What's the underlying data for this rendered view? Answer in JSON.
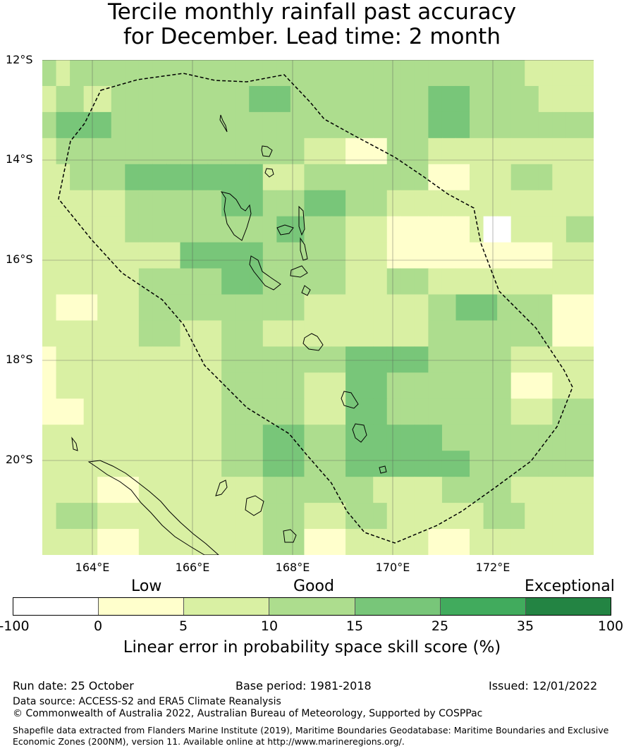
{
  "title": {
    "line1": "Tercile monthly rainfall past accuracy",
    "line2": "for December. Lead time: 2 month"
  },
  "map": {
    "lat_labels": [
      "12°S",
      "14°S",
      "16°S",
      "18°S",
      "20°S"
    ],
    "lon_labels": [
      "164°E",
      "166°E",
      "168°E",
      "170°E",
      "172°E"
    ],
    "colors": [
      "#ffffff",
      "#ffffcc",
      "#d9f0a3",
      "#addd8e",
      "#78c679",
      "#41ab5d",
      "#238443"
    ],
    "grid": [
      [
        3,
        2,
        3,
        3,
        3,
        3,
        3,
        3,
        3,
        3,
        3,
        3,
        3,
        3,
        3,
        3,
        3,
        3,
        3,
        3,
        3,
        3,
        3,
        3,
        3,
        3,
        3,
        3,
        3,
        3,
        3,
        3,
        3,
        3,
        3,
        2,
        2,
        2,
        2,
        2
      ],
      [
        2,
        3,
        3,
        2,
        2,
        3,
        3,
        3,
        3,
        3,
        3,
        3,
        3,
        3,
        3,
        4,
        4,
        4,
        3,
        3,
        3,
        3,
        3,
        3,
        3,
        3,
        3,
        3,
        4,
        4,
        4,
        3,
        3,
        3,
        3,
        3,
        2,
        2,
        2,
        2
      ],
      [
        3,
        4,
        4,
        4,
        4,
        3,
        3,
        3,
        3,
        3,
        3,
        3,
        3,
        3,
        3,
        3,
        3,
        3,
        3,
        3,
        3,
        3,
        3,
        3,
        3,
        3,
        3,
        3,
        4,
        4,
        4,
        3,
        3,
        3,
        3,
        3,
        3,
        3,
        3,
        3
      ],
      [
        2,
        3,
        3,
        3,
        3,
        3,
        3,
        3,
        3,
        3,
        3,
        3,
        3,
        3,
        3,
        3,
        3,
        3,
        3,
        2,
        2,
        2,
        1,
        1,
        1,
        3,
        3,
        3,
        2,
        2,
        2,
        2,
        2,
        2,
        2,
        2,
        2,
        2,
        2,
        2
      ],
      [
        2,
        2,
        3,
        3,
        3,
        3,
        4,
        4,
        4,
        4,
        4,
        4,
        4,
        4,
        4,
        4,
        2,
        2,
        2,
        3,
        3,
        3,
        3,
        3,
        3,
        3,
        3,
        3,
        1,
        1,
        1,
        2,
        2,
        2,
        3,
        3,
        3,
        2,
        2,
        2
      ],
      [
        2,
        2,
        2,
        2,
        2,
        2,
        3,
        3,
        3,
        3,
        3,
        3,
        3,
        4,
        4,
        4,
        3,
        3,
        3,
        4,
        4,
        4,
        3,
        3,
        3,
        2,
        2,
        2,
        2,
        2,
        2,
        2,
        2,
        2,
        2,
        2,
        2,
        2,
        2,
        2
      ],
      [
        2,
        2,
        2,
        2,
        2,
        2,
        3,
        3,
        3,
        3,
        3,
        3,
        3,
        3,
        3,
        3,
        3,
        4,
        4,
        3,
        3,
        3,
        2,
        2,
        2,
        1,
        1,
        1,
        1,
        1,
        1,
        2,
        0,
        0,
        2,
        2,
        2,
        2,
        3,
        3
      ],
      [
        2,
        2,
        2,
        2,
        2,
        2,
        2,
        2,
        2,
        2,
        4,
        4,
        4,
        4,
        4,
        4,
        3,
        3,
        3,
        3,
        3,
        3,
        2,
        2,
        2,
        1,
        1,
        1,
        1,
        1,
        1,
        1,
        1,
        1,
        1,
        1,
        1,
        2,
        2,
        2
      ],
      [
        2,
        2,
        2,
        2,
        2,
        2,
        2,
        3,
        3,
        3,
        3,
        3,
        3,
        4,
        4,
        4,
        3,
        3,
        3,
        3,
        3,
        3,
        2,
        2,
        2,
        3,
        3,
        3,
        2,
        2,
        2,
        2,
        2,
        2,
        2,
        2,
        2,
        2,
        2,
        2
      ],
      [
        2,
        1,
        1,
        1,
        2,
        2,
        2,
        3,
        3,
        3,
        3,
        3,
        3,
        3,
        3,
        3,
        3,
        3,
        3,
        2,
        2,
        2,
        2,
        2,
        2,
        2,
        2,
        2,
        3,
        3,
        4,
        4,
        4,
        3,
        3,
        3,
        3,
        1,
        1,
        1
      ],
      [
        2,
        2,
        2,
        2,
        2,
        2,
        2,
        3,
        3,
        3,
        2,
        2,
        2,
        3,
        3,
        3,
        2,
        2,
        2,
        2,
        2,
        2,
        2,
        2,
        2,
        2,
        2,
        2,
        3,
        3,
        3,
        3,
        3,
        3,
        3,
        3,
        3,
        1,
        1,
        1
      ],
      [
        1,
        2,
        2,
        2,
        2,
        2,
        2,
        2,
        2,
        2,
        2,
        2,
        2,
        3,
        3,
        3,
        3,
        3,
        3,
        3,
        3,
        3,
        4,
        4,
        4,
        4,
        4,
        4,
        3,
        3,
        3,
        3,
        3,
        3,
        2,
        2,
        2,
        2,
        2,
        2
      ],
      [
        1,
        2,
        2,
        2,
        2,
        2,
        2,
        2,
        2,
        2,
        2,
        2,
        2,
        3,
        3,
        3,
        3,
        3,
        3,
        2,
        2,
        2,
        4,
        4,
        4,
        3,
        3,
        3,
        3,
        3,
        3,
        3,
        3,
        3,
        1,
        1,
        1,
        2,
        2,
        2
      ],
      [
        1,
        1,
        1,
        2,
        2,
        2,
        2,
        2,
        2,
        2,
        2,
        2,
        2,
        3,
        3,
        3,
        3,
        3,
        3,
        2,
        2,
        2,
        4,
        4,
        4,
        3,
        3,
        3,
        3,
        3,
        3,
        3,
        3,
        3,
        2,
        2,
        2,
        3,
        3,
        3
      ],
      [
        2,
        2,
        2,
        2,
        2,
        2,
        2,
        2,
        2,
        2,
        2,
        2,
        2,
        3,
        3,
        3,
        4,
        4,
        4,
        3,
        3,
        3,
        4,
        4,
        4,
        4,
        4,
        4,
        4,
        3,
        3,
        3,
        3,
        3,
        3,
        3,
        3,
        3,
        3,
        3
      ],
      [
        2,
        2,
        2,
        2,
        2,
        2,
        2,
        2,
        2,
        2,
        2,
        2,
        2,
        3,
        3,
        3,
        4,
        4,
        4,
        3,
        3,
        3,
        4,
        4,
        4,
        4,
        4,
        4,
        4,
        4,
        4,
        3,
        3,
        3,
        3,
        3,
        3,
        3,
        3,
        3
      ],
      [
        2,
        2,
        2,
        2,
        1,
        1,
        1,
        2,
        2,
        2,
        2,
        2,
        2,
        2,
        2,
        2,
        3,
        3,
        3,
        3,
        3,
        3,
        3,
        3,
        2,
        2,
        2,
        2,
        2,
        3,
        3,
        3,
        3,
        3,
        2,
        2,
        2,
        2,
        2,
        2
      ],
      [
        2,
        3,
        3,
        3,
        2,
        2,
        2,
        2,
        2,
        2,
        2,
        2,
        2,
        2,
        2,
        2,
        3,
        3,
        3,
        2,
        2,
        2,
        3,
        3,
        3,
        2,
        2,
        2,
        2,
        2,
        2,
        2,
        3,
        3,
        3,
        2,
        2,
        2,
        2,
        2
      ],
      [
        2,
        2,
        2,
        2,
        1,
        1,
        1,
        2,
        2,
        2,
        2,
        2,
        2,
        2,
        2,
        2,
        3,
        3,
        3,
        1,
        1,
        1,
        2,
        2,
        2,
        2,
        2,
        2,
        1,
        1,
        1,
        2,
        2,
        2,
        2,
        2,
        2,
        2,
        2,
        2
      ]
    ]
  },
  "legend": {
    "categories": [
      "Low",
      "Good",
      "Exceptional"
    ],
    "ticks": [
      "-100",
      "0",
      "5",
      "10",
      "15",
      "25",
      "35",
      "100"
    ],
    "colors": [
      "#ffffff",
      "#ffffcc",
      "#d9f0a3",
      "#addd8e",
      "#78c679",
      "#41ab5d",
      "#238443"
    ],
    "title": "Linear error in probability space skill score (%)"
  },
  "footer": {
    "run_date": "Run date: 25 October",
    "base_period": "Base period: 1981-2018",
    "issued": "Issued: 12/01/2022",
    "data_source": "Data source: ACCESS-S2 and ERA5 Climate Reanalysis",
    "copyright": "© Commonwealth of Australia 2022, Australian Bureau of Meteorology, Supported by COSPPac",
    "shapefile_line1": "Shapefile data extracted from Flanders Marine Institute (2019), Maritime Boundaries Geodatabase: Maritime Boundaries and Exclusive",
    "shapefile_line2": "Economic Zones (200NM), version 11. Available online at http://www.marineregions.org/."
  }
}
